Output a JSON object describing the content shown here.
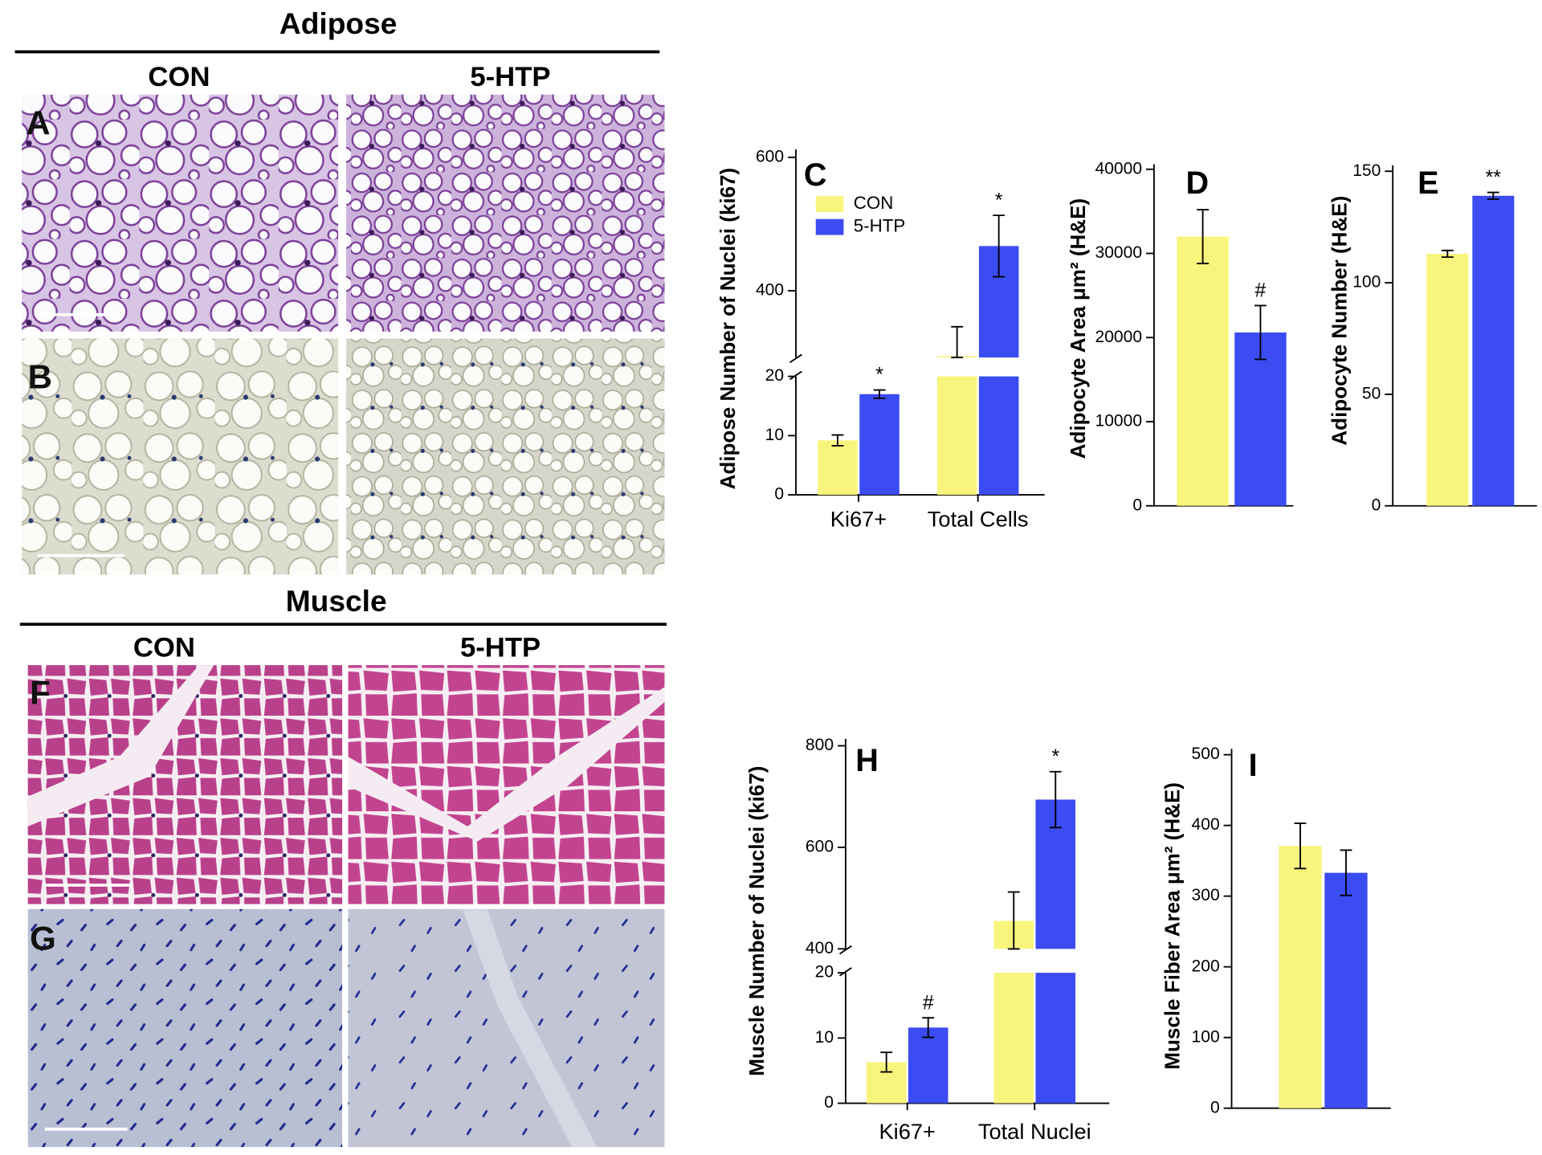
{
  "figure": {
    "sections": [
      {
        "title": "Adipose",
        "columns": [
          "CON",
          "5-HTP"
        ],
        "rows": [
          "A",
          "B"
        ]
      },
      {
        "title": "Muscle",
        "columns": [
          "CON",
          "5-HTP"
        ],
        "rows": [
          "F",
          "G"
        ]
      }
    ]
  },
  "chart_data": [
    {
      "type": "bar",
      "panel": "C",
      "ylabel": "Adipose Number of Nuclei (ki67)",
      "categories": [
        "Ki67+",
        "Total Cells"
      ],
      "legend": true,
      "y_segments": [
        {
          "ylim": [
            0,
            20
          ],
          "yticks": [
            0,
            10,
            20
          ]
        },
        {
          "ylim": [
            300,
            600
          ],
          "yticks": [
            400,
            600
          ]
        }
      ],
      "series": [
        {
          "name": "CON",
          "color": "#f8f57c",
          "values": [
            9.2,
            302
          ],
          "errors": [
            0.9,
            44
          ]
        },
        {
          "name": "5-HTP",
          "color": "#3a4cf2",
          "values": [
            17,
            467
          ],
          "errors": [
            0.7,
            46
          ],
          "annotations": [
            "*",
            "*"
          ]
        }
      ]
    },
    {
      "type": "bar",
      "panel": "D",
      "ylabel": "Adipocyte Area μm² (H&E)",
      "categories": [
        null
      ],
      "ylim": [
        0,
        40000
      ],
      "yticks": [
        0,
        10000,
        20000,
        30000,
        40000
      ],
      "series": [
        {
          "color": "#f8f57c",
          "values": [
            32000
          ],
          "errors": [
            3200
          ]
        },
        {
          "color": "#3a4cf2",
          "values": [
            20600
          ],
          "errors": [
            3200
          ],
          "annotations": [
            "#"
          ]
        }
      ]
    },
    {
      "type": "bar",
      "panel": "E",
      "ylabel": "Adipocyte Number (H&E)",
      "categories": [
        null
      ],
      "ylim": [
        0,
        150
      ],
      "yticks": [
        0,
        50,
        100,
        150
      ],
      "series": [
        {
          "color": "#f8f57c",
          "values": [
            113
          ],
          "errors": [
            1.5
          ]
        },
        {
          "color": "#3a4cf2",
          "values": [
            139
          ],
          "errors": [
            1.5
          ],
          "annotations": [
            "**"
          ]
        }
      ]
    },
    {
      "type": "bar",
      "panel": "H",
      "ylabel": "Muscle Number of Nuclei (ki67)",
      "categories": [
        "Ki67+",
        "Total Nuclei"
      ],
      "y_segments": [
        {
          "ylim": [
            0,
            20
          ],
          "yticks": [
            0,
            10,
            20
          ]
        },
        {
          "ylim": [
            400,
            800
          ],
          "yticks": [
            400,
            600,
            800
          ]
        }
      ],
      "series": [
        {
          "color": "#f8f57c",
          "values": [
            6.3,
            455
          ],
          "errors": [
            1.5,
            57
          ]
        },
        {
          "color": "#3a4cf2",
          "values": [
            11.6,
            694
          ],
          "errors": [
            1.5,
            55
          ],
          "annotations": [
            "#",
            "*"
          ]
        }
      ]
    },
    {
      "type": "bar",
      "panel": "I",
      "ylabel": "Muscle Fiber Area μm² (H&E)",
      "categories": [
        null
      ],
      "ylim": [
        0,
        500
      ],
      "yticks": [
        0,
        100,
        200,
        300,
        400,
        500
      ],
      "series": [
        {
          "color": "#f8f57c",
          "values": [
            371
          ],
          "errors": [
            32
          ]
        },
        {
          "color": "#3a4cf2",
          "values": [
            333
          ],
          "errors": [
            32
          ]
        }
      ]
    }
  ]
}
